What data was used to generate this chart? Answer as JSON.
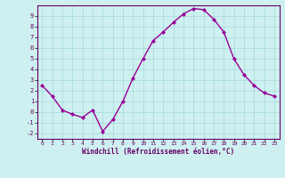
{
  "x": [
    0,
    1,
    2,
    3,
    4,
    5,
    6,
    7,
    8,
    9,
    10,
    11,
    12,
    13,
    14,
    15,
    16,
    17,
    18,
    19,
    20,
    21,
    22,
    23
  ],
  "y": [
    2.5,
    1.5,
    0.2,
    -0.2,
    -0.5,
    0.2,
    -1.8,
    -0.7,
    1.0,
    3.2,
    5.0,
    6.7,
    7.5,
    8.4,
    9.2,
    9.7,
    9.6,
    8.7,
    7.5,
    5.0,
    3.5,
    2.5,
    1.8,
    1.5
  ],
  "line_color": "#990099",
  "marker": "D",
  "marker_size": 2.0,
  "bg_color": "#cef0f0",
  "grid_color": "#aadddd",
  "xlabel": "Windchill (Refroidissement éolien,°C)",
  "xlabel_color": "#660066",
  "tick_color": "#660066",
  "ylim": [
    -2.5,
    10.0
  ],
  "xlim": [
    -0.5,
    23.5
  ],
  "yticks": [
    -2,
    -1,
    0,
    1,
    2,
    3,
    4,
    5,
    6,
    7,
    8,
    9
  ],
  "xticks": [
    0,
    1,
    2,
    3,
    4,
    5,
    6,
    7,
    8,
    9,
    10,
    11,
    12,
    13,
    14,
    15,
    16,
    17,
    18,
    19,
    20,
    21,
    22,
    23
  ]
}
